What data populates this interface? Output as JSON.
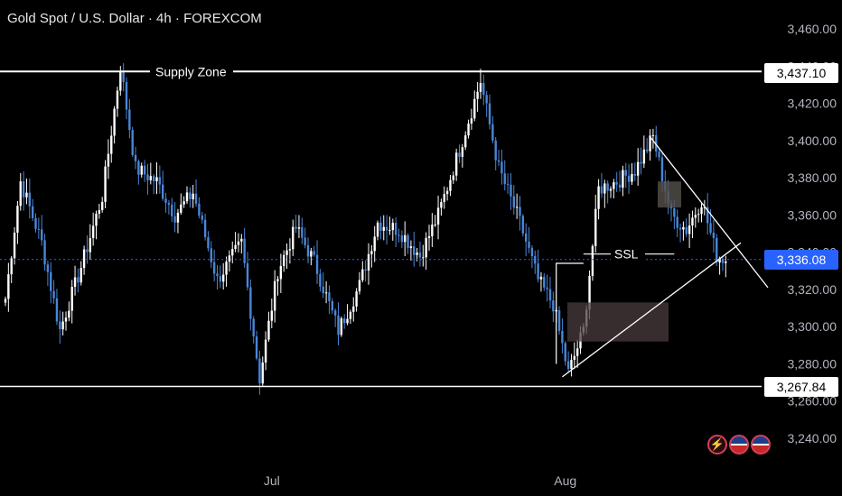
{
  "header": {
    "title": "Gold Spot / U.S. Dollar · 4h · FOREXCOM"
  },
  "price_tags": {
    "supply": "3,437.10",
    "current": "3,336.08",
    "support": "3,267.84"
  },
  "colors": {
    "up": "#ffffff",
    "down": "#4a86d8",
    "background": "#000000",
    "live": "#2962ff"
  },
  "icons": {
    "bolt": "lightning-icon",
    "flag1": "us-flag-icon",
    "flag2": "us-flag-icon"
  },
  "chart_data": {
    "type": "candlestick",
    "symbol": "Gold Spot / U.S. Dollar",
    "timeframe": "4h",
    "ylim": [
      3230,
      3470
    ],
    "y_ticks": [
      "3,460.00",
      "3,440.00",
      "3,420.00",
      "3,400.00",
      "3,380.00",
      "3,360.00",
      "3,340.00",
      "3,320.00",
      "3,300.00",
      "3,280.00",
      "3,260.00",
      "3,240.00"
    ],
    "x_ticks": [
      {
        "label": "Jul",
        "bar": 88
      },
      {
        "label": "Aug",
        "bar": 185
      }
    ],
    "anchors": [
      {
        "bar": 0,
        "price": 3315
      },
      {
        "bar": 5,
        "price": 3378
      },
      {
        "bar": 12,
        "price": 3345
      },
      {
        "bar": 18,
        "price": 3298
      },
      {
        "bar": 25,
        "price": 3332
      },
      {
        "bar": 32,
        "price": 3370
      },
      {
        "bar": 38,
        "price": 3440
      },
      {
        "bar": 43,
        "price": 3385
      },
      {
        "bar": 50,
        "price": 3378
      },
      {
        "bar": 56,
        "price": 3360
      },
      {
        "bar": 62,
        "price": 3372
      },
      {
        "bar": 70,
        "price": 3325
      },
      {
        "bar": 78,
        "price": 3345
      },
      {
        "bar": 84,
        "price": 3272
      },
      {
        "bar": 90,
        "price": 3330
      },
      {
        "bar": 96,
        "price": 3353
      },
      {
        "bar": 102,
        "price": 3335
      },
      {
        "bar": 110,
        "price": 3298
      },
      {
        "bar": 117,
        "price": 3322
      },
      {
        "bar": 123,
        "price": 3356
      },
      {
        "bar": 130,
        "price": 3352
      },
      {
        "bar": 137,
        "price": 3338
      },
      {
        "bar": 143,
        "price": 3360
      },
      {
        "bar": 150,
        "price": 3395
      },
      {
        "bar": 157,
        "price": 3432
      },
      {
        "bar": 163,
        "price": 3385
      },
      {
        "bar": 170,
        "price": 3356
      },
      {
        "bar": 176,
        "price": 3325
      },
      {
        "bar": 181,
        "price": 3312
      },
      {
        "bar": 186,
        "price": 3275
      },
      {
        "bar": 191,
        "price": 3298
      },
      {
        "bar": 196,
        "price": 3374
      },
      {
        "bar": 202,
        "price": 3378
      },
      {
        "bar": 208,
        "price": 3384
      },
      {
        "bar": 214,
        "price": 3402
      },
      {
        "bar": 220,
        "price": 3360
      },
      {
        "bar": 225,
        "price": 3352
      },
      {
        "bar": 230,
        "price": 3368
      },
      {
        "bar": 235,
        "price": 3338
      },
      {
        "bar": 238,
        "price": 3336
      }
    ],
    "levels": [
      {
        "name": "Supply Zone",
        "price": 3437.1
      },
      {
        "name": "",
        "price": 3267.84
      }
    ],
    "annotations": [
      {
        "type": "label",
        "text": "Supply Zone",
        "price": 3437.1
      },
      {
        "type": "label",
        "text": "SSL",
        "price": 3336.08
      }
    ],
    "current_price": 3336.08
  }
}
